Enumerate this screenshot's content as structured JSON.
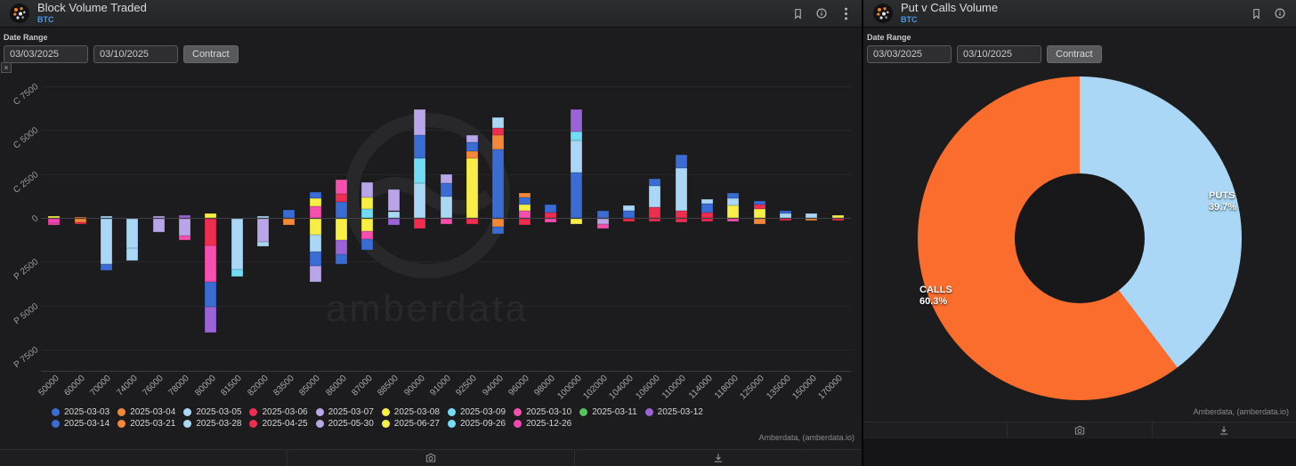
{
  "left_panel": {
    "title": "Block Volume Traded",
    "subtitle": "BTC",
    "date_range_label": "Date Range",
    "date_from": "03/03/2025",
    "date_to": "03/10/2025",
    "contract_label": "Contract",
    "collapse_glyph": "×",
    "attribution": "Amberdata, (amberdata.io)",
    "watermark_text": "amberdata"
  },
  "right_panel": {
    "title": "Put v Calls Volume",
    "subtitle": "BTC",
    "date_range_label": "Date Range",
    "date_from": "03/03/2025",
    "date_to": "03/10/2025",
    "contract_label": "Contract",
    "attribution": "Amberdata, (amberdata.io)"
  },
  "chart_data": [
    {
      "type": "bar",
      "stacked": true,
      "title": "Block Volume Traded",
      "ylim": [
        -7500,
        7500
      ],
      "grid": true,
      "legend_position": "bottom",
      "y_ticks": [
        {
          "label": "C 7500",
          "value": 7500
        },
        {
          "label": "C 5000",
          "value": 5000
        },
        {
          "label": "C 2500",
          "value": 2500
        },
        {
          "label": "0",
          "value": 0
        },
        {
          "label": "P 2500",
          "value": -2500
        },
        {
          "label": "P 5000",
          "value": -5000
        },
        {
          "label": "P 7500",
          "value": -7500
        }
      ],
      "categories": [
        "50000",
        "60000",
        "70000",
        "74000",
        "76000",
        "78000",
        "80000",
        "81500",
        "82000",
        "83500",
        "85000",
        "86000",
        "87000",
        "88500",
        "90000",
        "91000",
        "92500",
        "94000",
        "96000",
        "98000",
        "100000",
        "102000",
        "104000",
        "106000",
        "110000",
        "114000",
        "118000",
        "125000",
        "135000",
        "150000",
        "170000"
      ],
      "legend": [
        {
          "label": "2025-03-03",
          "color": "#3a6cd4"
        },
        {
          "label": "2025-03-04",
          "color": "#f2893a"
        },
        {
          "label": "2025-03-05",
          "color": "#a9d7f5"
        },
        {
          "label": "2025-03-06",
          "color": "#ee2d51"
        },
        {
          "label": "2025-03-07",
          "color": "#b9a5e8"
        },
        {
          "label": "2025-03-08",
          "color": "#f7ef46"
        },
        {
          "label": "2025-03-09",
          "color": "#72dcf5"
        },
        {
          "label": "2025-03-10",
          "color": "#f74fae"
        },
        {
          "label": "2025-03-11",
          "color": "#57c25f"
        },
        {
          "label": "2025-03-12",
          "color": "#9b63d8"
        },
        {
          "label": "2025-03-14",
          "color": "#3a6cd4"
        },
        {
          "label": "2025-03-21",
          "color": "#f2893a"
        },
        {
          "label": "2025-03-28",
          "color": "#a9d7f5"
        },
        {
          "label": "2025-04-25",
          "color": "#ee2d51"
        },
        {
          "label": "2025-05-30",
          "color": "#b9a5e8"
        },
        {
          "label": "2025-06-27",
          "color": "#f7ef46"
        },
        {
          "label": "2025-09-26",
          "color": "#72dcf5"
        },
        {
          "label": "2025-12-26",
          "color": "#f545b4"
        }
      ],
      "bars": [
        {
          "strike": "50000",
          "segments": [
            {
              "date": "2025-12-26",
              "value": -260
            },
            {
              "date": "2025-03-10",
              "value": -120
            },
            {
              "date": "2025-03-08",
              "value": 80
            }
          ]
        },
        {
          "strike": "60000",
          "segments": [
            {
              "date": "2025-03-21",
              "value": -200
            },
            {
              "date": "2025-04-25",
              "value": -120
            },
            {
              "date": "2025-03-04",
              "value": 60
            }
          ]
        },
        {
          "strike": "70000",
          "segments": [
            {
              "date": "2025-03-28",
              "value": -2600
            },
            {
              "date": "2025-03-03",
              "value": -350
            },
            {
              "date": "2025-03-05",
              "value": 100
            }
          ]
        },
        {
          "strike": "74000",
          "segments": [
            {
              "date": "2025-03-28",
              "value": -1650
            },
            {
              "date": "2025-03-05",
              "value": -750
            }
          ]
        },
        {
          "strike": "76000",
          "segments": [
            {
              "date": "2025-05-30",
              "value": -780
            },
            {
              "date": "2025-03-07",
              "value": 100
            }
          ]
        },
        {
          "strike": "78000",
          "segments": [
            {
              "date": "2025-03-07",
              "value": -950
            },
            {
              "date": "2025-03-10",
              "value": -250
            },
            {
              "date": "2025-03-12",
              "value": 150
            }
          ]
        },
        {
          "strike": "80000",
          "segments": [
            {
              "date": "2025-04-25",
              "value": -1500
            },
            {
              "date": "2025-03-10",
              "value": -2100
            },
            {
              "date": "2025-03-03",
              "value": -1400
            },
            {
              "date": "2025-03-12",
              "value": -1500
            },
            {
              "date": "2025-03-08",
              "value": 250
            }
          ]
        },
        {
          "strike": "81500",
          "segments": [
            {
              "date": "2025-03-28",
              "value": -2900
            },
            {
              "date": "2025-03-09",
              "value": -400
            }
          ]
        },
        {
          "strike": "82000",
          "segments": [
            {
              "date": "2025-03-07",
              "value": -1300
            },
            {
              "date": "2025-03-28",
              "value": -250
            },
            {
              "date": "2025-03-05",
              "value": 120
            }
          ]
        },
        {
          "strike": "83500",
          "segments": [
            {
              "date": "2025-03-04",
              "value": -350
            },
            {
              "date": "2025-03-03",
              "value": 450
            }
          ]
        },
        {
          "strike": "85000",
          "segments": [
            {
              "date": "2025-03-08",
              "value": -900
            },
            {
              "date": "2025-03-28",
              "value": -1000
            },
            {
              "date": "2025-03-03",
              "value": -800
            },
            {
              "date": "2025-03-07",
              "value": -900
            },
            {
              "date": "2025-03-10",
              "value": 650
            },
            {
              "date": "2025-03-08",
              "value": 450
            },
            {
              "date": "2025-03-03",
              "value": 350
            }
          ]
        },
        {
          "strike": "86000",
          "segments": [
            {
              "date": "2025-03-08",
              "value": -1200
            },
            {
              "date": "2025-03-12",
              "value": -850
            },
            {
              "date": "2025-03-03",
              "value": -550
            },
            {
              "date": "2025-03-03",
              "value": 900
            },
            {
              "date": "2025-04-25",
              "value": 450
            },
            {
              "date": "2025-03-10",
              "value": 850
            }
          ]
        },
        {
          "strike": "87000",
          "segments": [
            {
              "date": "2025-03-08",
              "value": -700
            },
            {
              "date": "2025-03-10",
              "value": -450
            },
            {
              "date": "2025-03-03",
              "value": -650
            },
            {
              "date": "2025-03-09",
              "value": 500
            },
            {
              "date": "2025-03-08",
              "value": 650
            },
            {
              "date": "2025-03-07",
              "value": 900
            }
          ]
        },
        {
          "strike": "88500",
          "segments": [
            {
              "date": "2025-03-12",
              "value": -380
            },
            {
              "date": "2025-03-05",
              "value": 380
            },
            {
              "date": "2025-03-07",
              "value": 1250
            }
          ]
        },
        {
          "strike": "90000",
          "segments": [
            {
              "date": "2025-04-25",
              "value": -580
            },
            {
              "date": "2025-03-05",
              "value": 2000
            },
            {
              "date": "2025-03-09",
              "value": 1400
            },
            {
              "date": "2025-03-03",
              "value": 1300
            },
            {
              "date": "2025-03-07",
              "value": 1500
            }
          ]
        },
        {
          "strike": "91000",
          "segments": [
            {
              "date": "2025-03-10",
              "value": -300
            },
            {
              "date": "2025-03-05",
              "value": 1200
            },
            {
              "date": "2025-03-03",
              "value": 800
            },
            {
              "date": "2025-03-07",
              "value": 500
            }
          ]
        },
        {
          "strike": "92500",
          "segments": [
            {
              "date": "2025-03-06",
              "value": -280
            },
            {
              "date": "2025-03-08",
              "value": 3400
            },
            {
              "date": "2025-03-04",
              "value": 420
            },
            {
              "date": "2025-03-03",
              "value": 500
            },
            {
              "date": "2025-03-07",
              "value": 380
            }
          ]
        },
        {
          "strike": "94000",
          "segments": [
            {
              "date": "2025-03-04",
              "value": -480
            },
            {
              "date": "2025-03-03",
              "value": -380
            },
            {
              "date": "2025-03-03",
              "value": 3900
            },
            {
              "date": "2025-03-04",
              "value": 820
            },
            {
              "date": "2025-04-25",
              "value": 420
            },
            {
              "date": "2025-03-05",
              "value": 600
            }
          ]
        },
        {
          "strike": "96000",
          "segments": [
            {
              "date": "2025-03-06",
              "value": -380
            },
            {
              "date": "2025-03-10",
              "value": 420
            },
            {
              "date": "2025-03-08",
              "value": 320
            },
            {
              "date": "2025-03-03",
              "value": 420
            },
            {
              "date": "2025-03-04",
              "value": 260
            }
          ]
        },
        {
          "strike": "98000",
          "segments": [
            {
              "date": "2025-03-10",
              "value": -220
            },
            {
              "date": "2025-04-25",
              "value": 320
            },
            {
              "date": "2025-03-03",
              "value": 420
            }
          ]
        },
        {
          "strike": "100000",
          "segments": [
            {
              "date": "2025-03-08",
              "value": -300
            },
            {
              "date": "2025-03-03",
              "value": 2600
            },
            {
              "date": "2025-03-05",
              "value": 1800
            },
            {
              "date": "2025-03-09",
              "value": 500
            },
            {
              "date": "2025-03-12",
              "value": 1300
            }
          ]
        },
        {
          "strike": "102000",
          "segments": [
            {
              "date": "2025-05-30",
              "value": -320
            },
            {
              "date": "2025-03-10",
              "value": -220
            },
            {
              "date": "2025-03-03",
              "value": 420
            }
          ]
        },
        {
          "strike": "104000",
          "segments": [
            {
              "date": "2025-03-06",
              "value": -140
            },
            {
              "date": "2025-03-03",
              "value": 420
            },
            {
              "date": "2025-03-05",
              "value": 300
            }
          ]
        },
        {
          "strike": "106000",
          "segments": [
            {
              "date": "2025-03-06",
              "value": -160
            },
            {
              "date": "2025-04-25",
              "value": 620
            },
            {
              "date": "2025-03-28",
              "value": 1200
            },
            {
              "date": "2025-03-03",
              "value": 420
            }
          ]
        },
        {
          "strike": "110000",
          "segments": [
            {
              "date": "2025-03-06",
              "value": -220
            },
            {
              "date": "2025-04-25",
              "value": 420
            },
            {
              "date": "2025-03-28",
              "value": 2400
            },
            {
              "date": "2025-03-03",
              "value": 800
            }
          ]
        },
        {
          "strike": "114000",
          "segments": [
            {
              "date": "2025-03-06",
              "value": -140
            },
            {
              "date": "2025-04-25",
              "value": 300
            },
            {
              "date": "2025-03-03",
              "value": 520
            },
            {
              "date": "2025-03-05",
              "value": 220
            }
          ]
        },
        {
          "strike": "118000",
          "segments": [
            {
              "date": "2025-03-10",
              "value": -160
            },
            {
              "date": "2025-03-08",
              "value": 700
            },
            {
              "date": "2025-03-28",
              "value": 420
            },
            {
              "date": "2025-03-03",
              "value": 320
            }
          ]
        },
        {
          "strike": "125000",
          "segments": [
            {
              "date": "2025-03-21",
              "value": -300
            },
            {
              "date": "2025-06-27",
              "value": 520
            },
            {
              "date": "2025-04-25",
              "value": 220
            },
            {
              "date": "2025-03-03",
              "value": 200
            }
          ]
        },
        {
          "strike": "135000",
          "segments": [
            {
              "date": "2025-03-06",
              "value": -110
            },
            {
              "date": "2025-03-05",
              "value": 260
            },
            {
              "date": "2025-03-03",
              "value": 160
            }
          ]
        },
        {
          "strike": "150000",
          "segments": [
            {
              "date": "2025-03-04",
              "value": -90
            },
            {
              "date": "2025-03-05",
              "value": 260
            }
          ]
        },
        {
          "strike": "170000",
          "segments": [
            {
              "date": "2025-03-06",
              "value": -60
            },
            {
              "date": "2025-06-27",
              "value": 160
            }
          ]
        }
      ]
    },
    {
      "type": "pie",
      "donut": true,
      "title": "Put v Calls Volume",
      "slices": [
        {
          "label": "PUTS",
          "pct": 39.7,
          "pct_label": "39.7%",
          "color": "#a9d7f5"
        },
        {
          "label": "CALLS",
          "pct": 60.3,
          "pct_label": "60.3%",
          "color": "#fb6d2c"
        }
      ]
    }
  ]
}
